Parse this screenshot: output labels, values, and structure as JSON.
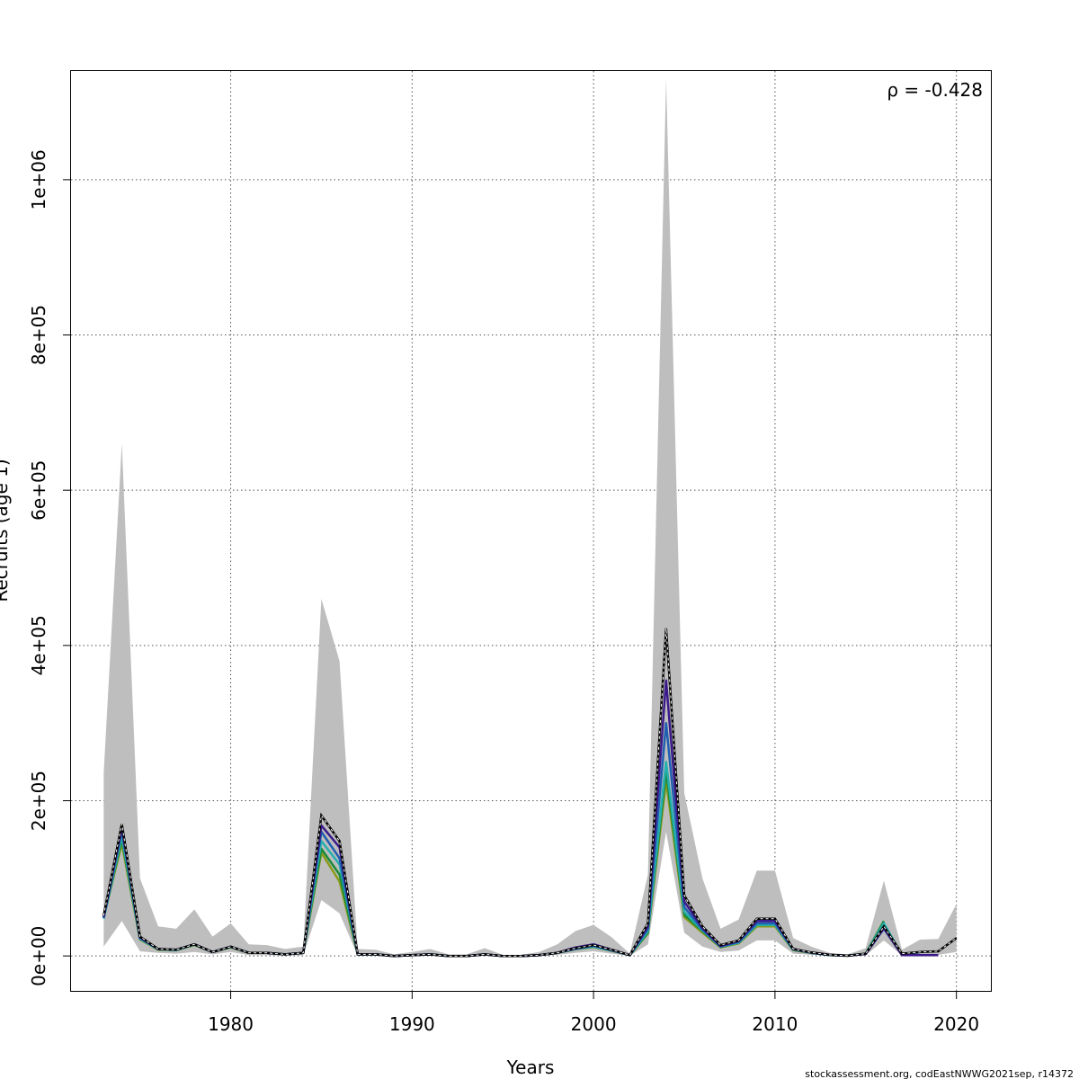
{
  "chart_data": {
    "type": "line",
    "xlabel": "Years",
    "ylabel": "Recruits (age 1)",
    "annotation": "ρ = -0.428",
    "footer": "stockassessment.org, codEastNWWG2021sep, r14372",
    "xlim": [
      1971.2,
      2021.9
    ],
    "ylim": [
      -45000,
      1140000
    ],
    "x_ticks": [
      1980,
      1990,
      2000,
      2010,
      2020
    ],
    "x_tick_labels": [
      "1980",
      "1990",
      "2000",
      "2010",
      "2020"
    ],
    "y_ticks": [
      0,
      200000,
      400000,
      600000,
      800000,
      1000000
    ],
    "y_tick_labels": [
      "0e+00",
      "2e+05",
      "4e+05",
      "6e+05",
      "8e+05",
      "1e+06"
    ],
    "grid": true,
    "colors": {
      "band": "#bebebe",
      "main_line": "#000000",
      "peels": [
        "#3b1a8a",
        "#1f5fb0",
        "#26b0b0",
        "#1a8a3a",
        "#8a9a1a"
      ]
    },
    "band": {
      "x": [
        1973,
        1974,
        1975,
        1976,
        1977,
        1978,
        1979,
        1980,
        1981,
        1982,
        1983,
        1984,
        1985,
        1986,
        1987,
        1988,
        1989,
        1990,
        1991,
        1992,
        1993,
        1994,
        1995,
        1996,
        1997,
        1998,
        1999,
        2000,
        2001,
        2002,
        2003,
        2004,
        2005,
        2006,
        2007,
        2008,
        2009,
        2010,
        2011,
        2012,
        2013,
        2014,
        2015,
        2016,
        2017,
        2018,
        2019,
        2020
      ],
      "upper": [
        235000,
        660000,
        100000,
        38000,
        35000,
        60000,
        25000,
        42000,
        15000,
        14000,
        9000,
        12000,
        460000,
        380000,
        9000,
        8000,
        2000,
        5000,
        9000,
        2000,
        2000,
        10000,
        1500,
        1500,
        5000,
        15000,
        32000,
        40000,
        24000,
        3000,
        105000,
        1130000,
        210000,
        100000,
        35000,
        47000,
        110000,
        110000,
        23000,
        12000,
        4000,
        2000,
        10000,
        97000,
        8000,
        21000,
        22000,
        67000
      ],
      "lower": [
        12000,
        45000,
        6000,
        4000,
        3000,
        5000,
        2000,
        5000,
        1000,
        1000,
        500,
        1000,
        72000,
        55000,
        500,
        500,
        0,
        500,
        500,
        0,
        0,
        500,
        0,
        0,
        300,
        1500,
        4000,
        6000,
        3000,
        200,
        15000,
        160000,
        30000,
        12000,
        5000,
        7000,
        20000,
        20000,
        3000,
        1500,
        300,
        200,
        1000,
        20000,
        800,
        1500,
        1500,
        5000
      ]
    },
    "series": [
      {
        "values": [
          52000,
          170000,
          25000,
          9000,
          8000,
          15000,
          5000,
          12000,
          4000,
          4000,
          2000,
          4000,
          181000,
          148000,
          2000,
          2000,
          0,
          1000,
          2000,
          0,
          0,
          2000,
          0,
          0,
          1000,
          4000,
          10000,
          14000,
          8000,
          1000,
          42000,
          422000,
          78000,
          38000,
          14000,
          20000,
          48000,
          48000,
          9000,
          4500,
          1500,
          300,
          3000,
          38000,
          3000,
          5000,
          6000,
          23000
        ]
      },
      {
        "values": [
          50000,
          165000,
          24000,
          9000,
          8000,
          15000,
          5000,
          12000,
          4000,
          4000,
          2000,
          4000,
          168000,
          140000,
          2000,
          2000,
          0,
          1000,
          2000,
          0,
          0,
          2000,
          0,
          0,
          1000,
          4000,
          11000,
          15000,
          8000,
          1000,
          38000,
          355000,
          70000,
          36000,
          13000,
          19000,
          45000,
          45000,
          9000,
          4500,
          1500,
          300,
          2500,
          36000,
          1000,
          1000,
          1000
        ]
      },
      {
        "values": [
          49000,
          162000,
          23000,
          9000,
          8000,
          15000,
          5000,
          12000,
          4000,
          4000,
          2000,
          4000,
          160000,
          126000,
          2000,
          2000,
          0,
          1000,
          2000,
          0,
          0,
          2000,
          0,
          0,
          1000,
          4000,
          9000,
          13000,
          7000,
          1000,
          35000,
          300000,
          63000,
          34000,
          12000,
          18000,
          42000,
          42000,
          8500,
          4000,
          1200,
          250,
          2500,
          35000,
          1500,
          1500
        ]
      },
      {
        "values": [
          48000,
          155000,
          22000,
          8500,
          7500,
          14500,
          5000,
          11500,
          4000,
          4000,
          2000,
          4000,
          148000,
          118000,
          2000,
          2000,
          0,
          1000,
          2000,
          0,
          0,
          2000,
          0,
          0,
          1000,
          4000,
          9000,
          12000,
          7000,
          1000,
          32000,
          250000,
          57000,
          33000,
          12000,
          17000,
          40000,
          40000,
          8000,
          4000,
          1200,
          250,
          2800,
          42000,
          1500
        ]
      },
      {
        "values": [
          49000,
          150000,
          22000,
          8500,
          7500,
          14500,
          5000,
          11500,
          4000,
          4000,
          2000,
          4000,
          138000,
          105000,
          2000,
          2000,
          0,
          1000,
          2000,
          0,
          0,
          2000,
          0,
          0,
          1000,
          4000,
          9000,
          12000,
          7000,
          1000,
          30000,
          238000,
          53000,
          32000,
          11500,
          17000,
          40000,
          40000,
          8000,
          4000,
          1200,
          250,
          3000,
          45000
        ]
      },
      {
        "values": [
          50000,
          145000,
          21000,
          8000,
          7500,
          14000,
          5000,
          11000,
          4000,
          4000,
          2000,
          4000,
          133000,
          96000,
          2000,
          2000,
          0,
          1000,
          2000,
          0,
          0,
          2000,
          0,
          0,
          1000,
          4000,
          8500,
          11500,
          6500,
          1000,
          29000,
          225000,
          50000,
          30000,
          11000,
          16000,
          38000,
          38000,
          7500,
          3800,
          1100,
          200,
          2800
        ]
      }
    ]
  }
}
